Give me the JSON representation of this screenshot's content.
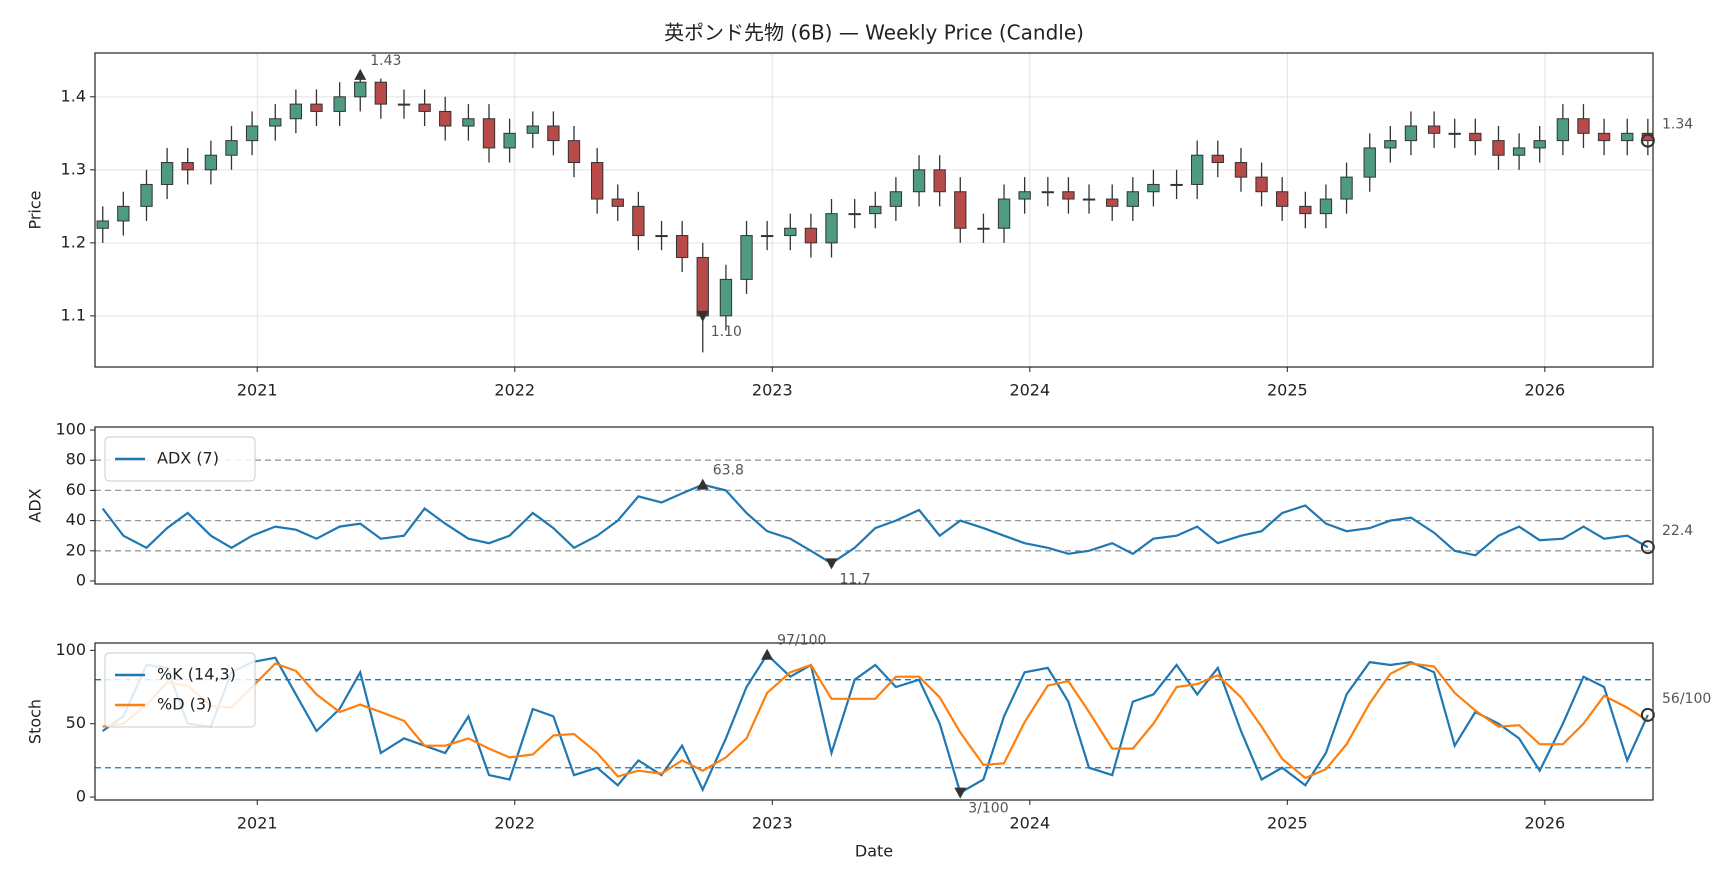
{
  "title": "英ポンド先物 (6B) — Weekly Price (Candle)",
  "chart_data": [
    {
      "type": "candlestick",
      "ylabel": "Price",
      "x": [
        2020.4,
        2020.48,
        2020.57,
        2020.65,
        2020.73,
        2020.82,
        2020.9,
        2020.98,
        2021.07,
        2021.15,
        2021.23,
        2021.32,
        2021.4,
        2021.48,
        2021.57,
        2021.65,
        2021.73,
        2021.82,
        2021.9,
        2021.98,
        2022.07,
        2022.15,
        2022.23,
        2022.32,
        2022.4,
        2022.48,
        2022.57,
        2022.65,
        2022.73,
        2022.82,
        2022.9,
        2022.98,
        2023.07,
        2023.15,
        2023.23,
        2023.32,
        2023.4,
        2023.48,
        2023.57,
        2023.65,
        2023.73,
        2023.82,
        2023.9,
        2023.98,
        2024.07,
        2024.15,
        2024.23,
        2024.32,
        2024.4,
        2024.48,
        2024.57,
        2024.65,
        2024.73,
        2024.82,
        2024.9,
        2024.98,
        2025.07,
        2025.15,
        2025.23,
        2025.32,
        2025.4,
        2025.48,
        2025.57,
        2025.65,
        2025.73,
        2025.82,
        2025.9,
        2025.98,
        2026.07,
        2026.15,
        2026.23,
        2026.32,
        2026.4
      ],
      "open": [
        1.22,
        1.23,
        1.25,
        1.28,
        1.31,
        1.3,
        1.32,
        1.34,
        1.36,
        1.37,
        1.39,
        1.38,
        1.4,
        1.42,
        1.39,
        1.39,
        1.38,
        1.36,
        1.37,
        1.33,
        1.35,
        1.36,
        1.34,
        1.31,
        1.26,
        1.25,
        1.21,
        1.21,
        1.18,
        1.1,
        1.15,
        1.21,
        1.21,
        1.22,
        1.2,
        1.24,
        1.24,
        1.25,
        1.27,
        1.3,
        1.27,
        1.22,
        1.22,
        1.26,
        1.27,
        1.27,
        1.26,
        1.26,
        1.25,
        1.27,
        1.28,
        1.28,
        1.32,
        1.31,
        1.29,
        1.27,
        1.25,
        1.24,
        1.26,
        1.29,
        1.33,
        1.34,
        1.36,
        1.35,
        1.35,
        1.34,
        1.32,
        1.33,
        1.34,
        1.37,
        1.35,
        1.34,
        1.35
      ],
      "high": [
        1.25,
        1.27,
        1.3,
        1.33,
        1.33,
        1.34,
        1.36,
        1.38,
        1.39,
        1.41,
        1.41,
        1.42,
        1.43,
        1.425,
        1.41,
        1.41,
        1.4,
        1.39,
        1.39,
        1.37,
        1.38,
        1.38,
        1.36,
        1.33,
        1.28,
        1.27,
        1.23,
        1.23,
        1.2,
        1.17,
        1.23,
        1.23,
        1.24,
        1.24,
        1.26,
        1.26,
        1.27,
        1.29,
        1.32,
        1.32,
        1.29,
        1.24,
        1.28,
        1.29,
        1.29,
        1.29,
        1.28,
        1.28,
        1.29,
        1.3,
        1.3,
        1.34,
        1.34,
        1.33,
        1.31,
        1.29,
        1.27,
        1.28,
        1.31,
        1.35,
        1.36,
        1.38,
        1.38,
        1.37,
        1.37,
        1.36,
        1.35,
        1.36,
        1.39,
        1.39,
        1.37,
        1.37,
        1.37
      ],
      "low": [
        1.2,
        1.21,
        1.23,
        1.26,
        1.28,
        1.28,
        1.3,
        1.32,
        1.34,
        1.35,
        1.36,
        1.36,
        1.38,
        1.37,
        1.37,
        1.36,
        1.34,
        1.34,
        1.31,
        1.31,
        1.33,
        1.32,
        1.29,
        1.24,
        1.23,
        1.19,
        1.19,
        1.16,
        1.05,
        1.08,
        1.13,
        1.19,
        1.19,
        1.18,
        1.18,
        1.22,
        1.22,
        1.23,
        1.25,
        1.25,
        1.2,
        1.2,
        1.2,
        1.24,
        1.25,
        1.24,
        1.24,
        1.23,
        1.23,
        1.25,
        1.26,
        1.26,
        1.29,
        1.27,
        1.25,
        1.23,
        1.22,
        1.22,
        1.24,
        1.27,
        1.31,
        1.32,
        1.33,
        1.33,
        1.32,
        1.3,
        1.3,
        1.31,
        1.32,
        1.33,
        1.32,
        1.32,
        1.32
      ],
      "close": [
        1.23,
        1.25,
        1.28,
        1.31,
        1.3,
        1.32,
        1.34,
        1.36,
        1.37,
        1.39,
        1.38,
        1.4,
        1.42,
        1.39,
        1.39,
        1.38,
        1.36,
        1.37,
        1.33,
        1.35,
        1.36,
        1.34,
        1.31,
        1.26,
        1.25,
        1.21,
        1.21,
        1.18,
        1.1,
        1.15,
        1.21,
        1.21,
        1.22,
        1.2,
        1.24,
        1.24,
        1.25,
        1.27,
        1.3,
        1.27,
        1.22,
        1.22,
        1.26,
        1.27,
        1.27,
        1.26,
        1.26,
        1.25,
        1.27,
        1.28,
        1.28,
        1.32,
        1.31,
        1.29,
        1.27,
        1.25,
        1.24,
        1.26,
        1.29,
        1.33,
        1.34,
        1.36,
        1.35,
        1.35,
        1.34,
        1.32,
        1.33,
        1.34,
        1.37,
        1.35,
        1.34,
        1.35,
        1.34
      ],
      "up_color": "#4f9a82",
      "down_color": "#b84a4a",
      "wick_color": "#333333",
      "xlim": [
        2020.37,
        2026.42
      ],
      "xticks": [
        2021,
        2022,
        2023,
        2024,
        2025,
        2026
      ],
      "ylim": [
        1.03,
        1.46
      ],
      "yticks": [
        1.1,
        1.2,
        1.3,
        1.4
      ],
      "grid": true,
      "annotations": [
        {
          "x": 2021.4,
          "value": 1.43,
          "label": "1.43",
          "marker": "triangle-up"
        },
        {
          "x": 2022.73,
          "value": 1.1,
          "label": "1.10",
          "marker": "triangle-down"
        },
        {
          "x": 2026.4,
          "value": 1.34,
          "label": "1.34",
          "marker": "circle"
        }
      ]
    },
    {
      "type": "line",
      "ylabel": "ADX",
      "x": [
        2020.4,
        2020.48,
        2020.57,
        2020.65,
        2020.73,
        2020.82,
        2020.9,
        2020.98,
        2021.07,
        2021.15,
        2021.23,
        2021.32,
        2021.4,
        2021.48,
        2021.57,
        2021.65,
        2021.73,
        2021.82,
        2021.9,
        2021.98,
        2022.07,
        2022.15,
        2022.23,
        2022.32,
        2022.4,
        2022.48,
        2022.57,
        2022.65,
        2022.73,
        2022.82,
        2022.9,
        2022.98,
        2023.07,
        2023.15,
        2023.23,
        2023.32,
        2023.4,
        2023.48,
        2023.57,
        2023.65,
        2023.73,
        2023.82,
        2023.9,
        2023.98,
        2024.07,
        2024.15,
        2024.23,
        2024.32,
        2024.4,
        2024.48,
        2024.57,
        2024.65,
        2024.73,
        2024.82,
        2024.9,
        2024.98,
        2025.07,
        2025.15,
        2025.23,
        2025.32,
        2025.4,
        2025.48,
        2025.57,
        2025.65,
        2025.73,
        2025.82,
        2025.9,
        2025.98,
        2026.07,
        2026.15,
        2026.23,
        2026.32,
        2026.4
      ],
      "series": [
        {
          "name": "ADX (7)",
          "color": "#1f77b4",
          "values": [
            48,
            30,
            22,
            35,
            45,
            30,
            22,
            30,
            36,
            34,
            28,
            36,
            38,
            28,
            30,
            48,
            38,
            28,
            25,
            30,
            45,
            35,
            22,
            30,
            40,
            56,
            52,
            58,
            63.8,
            60,
            45,
            33,
            28,
            20,
            11.7,
            22,
            35,
            40,
            47,
            30,
            40,
            35,
            30,
            25,
            22,
            18,
            20,
            25,
            18,
            28,
            30,
            36,
            25,
            30,
            33,
            45,
            50,
            38,
            33,
            35,
            40,
            42,
            32,
            20,
            17,
            30,
            36,
            27,
            28,
            36,
            28,
            30,
            22.4
          ]
        }
      ],
      "xlim": [
        2020.37,
        2026.42
      ],
      "ylim": [
        -2,
        102
      ],
      "yticks": [
        0,
        20,
        40,
        60,
        80,
        100
      ],
      "hlines": [
        20,
        40,
        60,
        80
      ],
      "hline_color": "#999999",
      "legend": "upper-left",
      "annotations": [
        {
          "x": 2022.73,
          "value": 63.8,
          "marker": "triangle-up"
        },
        {
          "x": 2023.23,
          "value": 11.7,
          "marker": "triangle-down"
        },
        {
          "x": 2026.4,
          "value": 22.4,
          "marker": "circle"
        }
      ]
    },
    {
      "type": "line",
      "ylabel": "Stoch",
      "xlabel": "Date",
      "x": [
        2020.4,
        2020.48,
        2020.57,
        2020.65,
        2020.73,
        2020.82,
        2020.9,
        2020.98,
        2021.07,
        2021.15,
        2021.23,
        2021.32,
        2021.4,
        2021.48,
        2021.57,
        2021.65,
        2021.73,
        2021.82,
        2021.9,
        2021.98,
        2022.07,
        2022.15,
        2022.23,
        2022.32,
        2022.4,
        2022.48,
        2022.57,
        2022.65,
        2022.73,
        2022.82,
        2022.9,
        2022.98,
        2023.07,
        2023.15,
        2023.23,
        2023.32,
        2023.4,
        2023.48,
        2023.57,
        2023.65,
        2023.73,
        2023.82,
        2023.9,
        2023.98,
        2024.07,
        2024.15,
        2024.23,
        2024.32,
        2024.4,
        2024.48,
        2024.57,
        2024.65,
        2024.73,
        2024.82,
        2024.9,
        2024.98,
        2025.07,
        2025.15,
        2025.23,
        2025.32,
        2025.4,
        2025.48,
        2025.57,
        2025.65,
        2025.73,
        2025.82,
        2025.9,
        2025.98,
        2026.07,
        2026.15,
        2026.23,
        2026.32,
        2026.4
      ],
      "series": [
        {
          "name": "%K (14,3)",
          "color": "#1f77b4",
          "values": [
            45,
            55,
            90,
            88,
            50,
            48,
            85,
            92,
            95,
            70,
            45,
            60,
            85,
            30,
            40,
            35,
            30,
            55,
            15,
            12,
            60,
            55,
            15,
            20,
            8,
            25,
            15,
            35,
            5,
            40,
            75,
            97,
            82,
            90,
            30,
            80,
            90,
            75,
            80,
            50,
            3,
            12,
            55,
            85,
            88,
            65,
            20,
            15,
            65,
            70,
            90,
            70,
            88,
            45,
            12,
            20,
            8,
            30,
            70,
            92,
            90,
            92,
            85,
            35,
            58,
            50,
            40,
            18,
            50,
            82,
            75,
            25,
            56
          ]
        },
        {
          "name": "%D (3)",
          "color": "#ff7f0e",
          "values": [
            48,
            50,
            63,
            78,
            76,
            62,
            61,
            75,
            91,
            86,
            70,
            58,
            63,
            58,
            52,
            35,
            35,
            40,
            33,
            27,
            29,
            42,
            43,
            30,
            14,
            18,
            16,
            25,
            18,
            27,
            40,
            71,
            85,
            90,
            67,
            67,
            67,
            82,
            82,
            68,
            44,
            22,
            23,
            51,
            76,
            79,
            58,
            33,
            33,
            50,
            75,
            77,
            83,
            68,
            48,
            26,
            13,
            19,
            36,
            64,
            84,
            91,
            89,
            71,
            59,
            48,
            49,
            36,
            36,
            50,
            69,
            61,
            52
          ]
        }
      ],
      "xlim": [
        2020.37,
        2026.42
      ],
      "xticks": [
        2021,
        2022,
        2023,
        2024,
        2025,
        2026
      ],
      "ylim": [
        -2,
        105
      ],
      "yticks": [
        0,
        50,
        100
      ],
      "hlines": [
        20,
        80
      ],
      "hline_color": "#1f77b4",
      "legend": "upper-left",
      "annotations": [
        {
          "x": 2022.98,
          "value": 97,
          "label": "97/100",
          "marker": "triangle-up"
        },
        {
          "x": 2023.73,
          "value": 3,
          "label": "3/100",
          "marker": "triangle-down"
        },
        {
          "x": 2026.4,
          "value": 56,
          "label": "56/100",
          "marker": "circle"
        }
      ]
    }
  ]
}
